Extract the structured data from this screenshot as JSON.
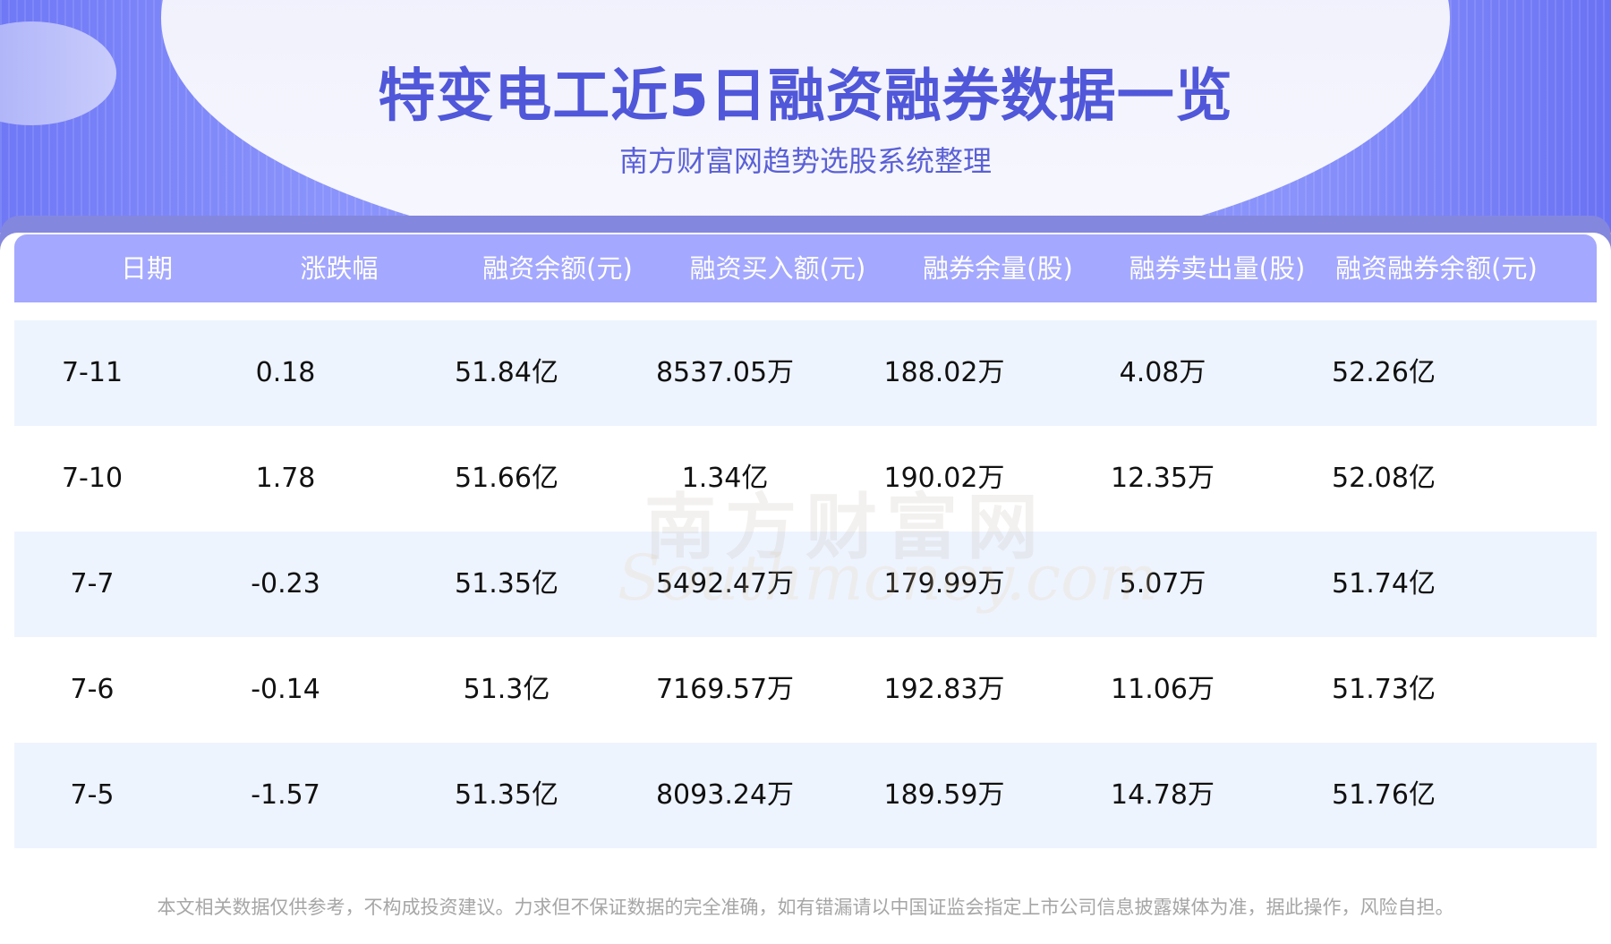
{
  "header": {
    "title": "特变电工近5日融资融券数据一览",
    "subtitle": "南方财富网趋势选股系统整理"
  },
  "watermark": {
    "cn": "南方财富网",
    "en": "Southmoney.com"
  },
  "table": {
    "columns": [
      "日期",
      "涨跌幅",
      "融资余额(元)",
      "融资买入额(元)",
      "融券余量(股)",
      "融券卖出量(股)",
      "融资融券余额(元)"
    ],
    "rows": [
      [
        "7-11",
        "0.18",
        "51.84亿",
        "8537.05万",
        "188.02万",
        "4.08万",
        "52.26亿"
      ],
      [
        "7-10",
        "1.78",
        "51.66亿",
        "1.34亿",
        "190.02万",
        "12.35万",
        "52.08亿"
      ],
      [
        "7-7",
        "-0.23",
        "51.35亿",
        "5492.47万",
        "179.99万",
        "5.07万",
        "51.74亿"
      ],
      [
        "7-6",
        "-0.14",
        "51.3亿",
        "7169.57万",
        "192.83万",
        "11.06万",
        "51.73亿"
      ],
      [
        "7-5",
        "-1.57",
        "51.35亿",
        "8093.24万",
        "189.59万",
        "14.78万",
        "51.76亿"
      ]
    ]
  },
  "footer": {
    "disclaimer": "本文相关数据仅供参考，不构成投资建议。力求但不保证数据的完全准确，如有错漏请以中国证监会指定上市公司信息披露媒体为准，据此操作，风险自担。"
  },
  "colors": {
    "accent": "#5057d9",
    "header_bg": "#a4a8fe",
    "row_alt": "#eef4fe"
  }
}
